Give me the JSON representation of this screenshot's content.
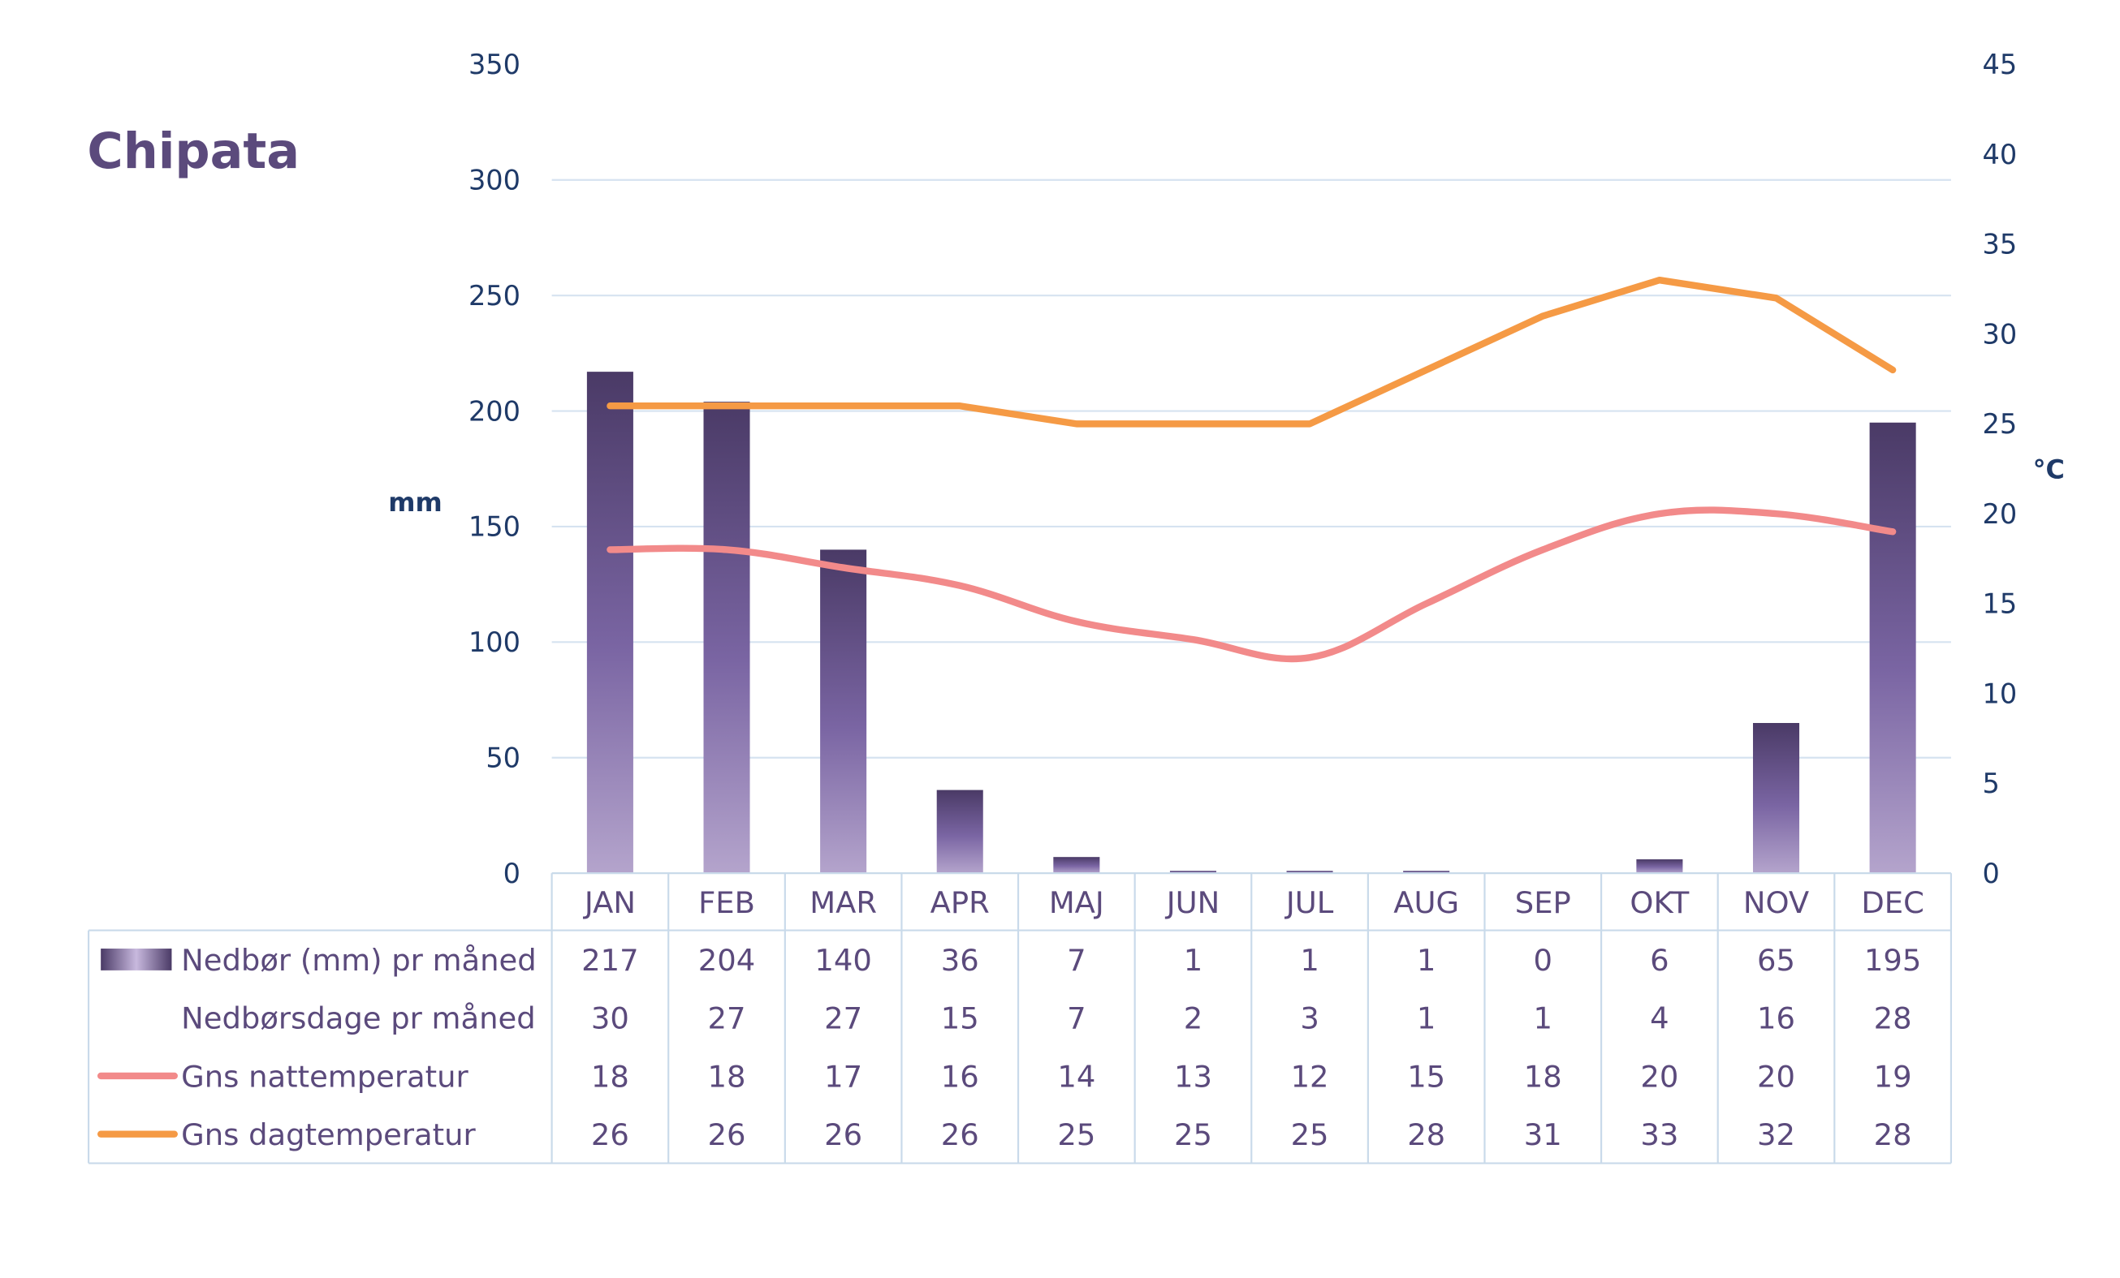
{
  "colors": {
    "precip_dark": "#4a3a66",
    "precip_light": "#b4a4cc",
    "night": "#f28a8a",
    "day": "#f59a45",
    "grid": "#d6e3f0",
    "table_border": "#c9daea",
    "text_purple": "#5b4a7c",
    "axis_blue": "#1f3a68"
  },
  "chart_data": {
    "type": "bar",
    "title": "Chipata",
    "categories": [
      "JAN",
      "FEB",
      "MAR",
      "APR",
      "MAJ",
      "JUN",
      "JUL",
      "AUG",
      "SEP",
      "OKT",
      "NOV",
      "DEC"
    ],
    "y_left": {
      "label": "mm",
      "range": [
        0,
        350
      ],
      "ticks": [
        0,
        50,
        100,
        150,
        200,
        250,
        300,
        350
      ]
    },
    "y_right": {
      "label": "°C",
      "range": [
        0,
        45
      ],
      "ticks": [
        0,
        5,
        10,
        15,
        20,
        25,
        30,
        35,
        40,
        45
      ]
    },
    "grid": true,
    "legend": "data-table-below",
    "series": [
      {
        "name": "Nedbør (mm) pr måned",
        "type": "bar",
        "axis": "left",
        "values": [
          217,
          204,
          140,
          36,
          7,
          1,
          1,
          1,
          0,
          6,
          65,
          195
        ]
      },
      {
        "name": "Nedbørsdage pr måned",
        "type": "table-only",
        "values": [
          30,
          27,
          27,
          15,
          7,
          2,
          3,
          1,
          1,
          4,
          16,
          28
        ]
      },
      {
        "name": "Gns nattemperatur",
        "type": "line",
        "axis": "right",
        "values": [
          18,
          18,
          17,
          16,
          14,
          13,
          12,
          15,
          18,
          20,
          20,
          19
        ]
      },
      {
        "name": "Gns dagtemperatur",
        "type": "line",
        "axis": "right",
        "values": [
          26,
          26,
          26,
          26,
          25,
          25,
          25,
          28,
          31,
          33,
          32,
          28
        ]
      }
    ]
  }
}
